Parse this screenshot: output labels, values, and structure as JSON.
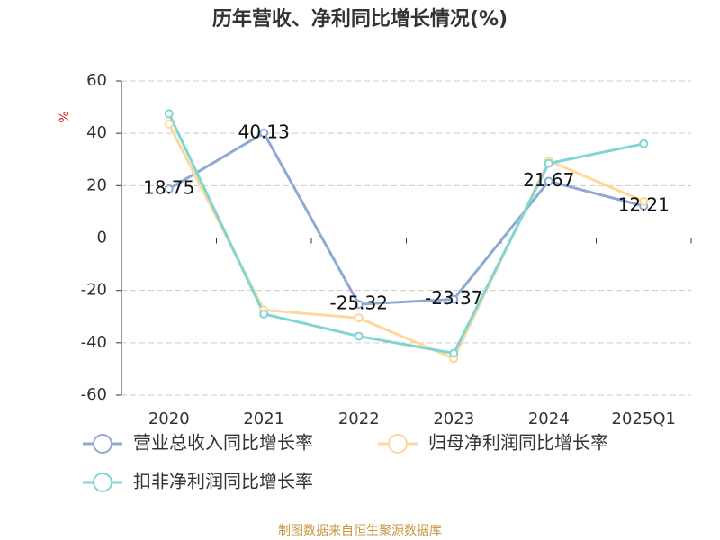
{
  "chart_data": {
    "type": "line",
    "title": "历年营收、净利同比增长情况(%)",
    "y_label": "%",
    "categories": [
      "2020",
      "2021",
      "2022",
      "2023",
      "2024",
      "2025Q1"
    ],
    "series": [
      {
        "name": "营业总收入同比增长率",
        "color": "#8eaad4",
        "values": [
          18.75,
          40.13,
          -25.32,
          -23.37,
          21.67,
          12.21
        ],
        "data_labels": true
      },
      {
        "name": "归母净利润同比增长率",
        "color": "#fcd89a",
        "values": [
          43.5,
          -27.5,
          -30.5,
          -46,
          29.5,
          14
        ]
      },
      {
        "name": "扣非净利润同比增长率",
        "color": "#80d4d4",
        "values": [
          47.5,
          -29,
          -37.5,
          -44,
          28.5,
          36
        ]
      }
    ],
    "ylim": [
      -60,
      60
    ],
    "yticks": [
      -60,
      -40,
      -20,
      0,
      20,
      40,
      60
    ],
    "grid": true,
    "source": "制图数据来自恒生聚源数据库"
  }
}
